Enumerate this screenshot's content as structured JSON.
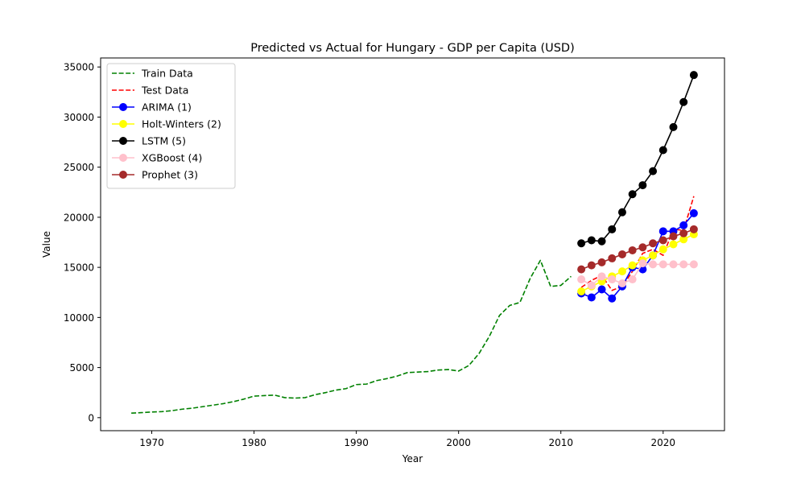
{
  "chart_data": {
    "type": "line",
    "title": "Predicted vs Actual for Hungary - GDP per Capita (USD)",
    "xlabel": "Year",
    "ylabel": "Value",
    "xlim": [
      1965,
      2026
    ],
    "ylim": [
      -1300,
      35900
    ],
    "xticks": [
      1970,
      1980,
      1990,
      2000,
      2010,
      2020
    ],
    "yticks": [
      0,
      5000,
      10000,
      15000,
      20000,
      25000,
      30000,
      35000
    ],
    "grid": false,
    "legend_position": "upper-left",
    "series": [
      {
        "name": "Train Data",
        "color": "#008000",
        "style": "dashed",
        "marker": false,
        "x": [
          1968,
          1969,
          1970,
          1971,
          1972,
          1973,
          1974,
          1975,
          1976,
          1977,
          1978,
          1979,
          1980,
          1981,
          1982,
          1983,
          1984,
          1985,
          1986,
          1987,
          1988,
          1989,
          1990,
          1991,
          1992,
          1993,
          1994,
          1995,
          1996,
          1997,
          1998,
          1999,
          2000,
          2001,
          2002,
          2003,
          2004,
          2005,
          2006,
          2007,
          2008,
          2009,
          2010,
          2011
        ],
        "y": [
          450,
          500,
          560,
          600,
          700,
          850,
          950,
          1100,
          1250,
          1400,
          1600,
          1850,
          2150,
          2200,
          2250,
          2000,
          1950,
          2000,
          2300,
          2500,
          2750,
          2900,
          3300,
          3350,
          3700,
          3900,
          4150,
          4500,
          4550,
          4600,
          4750,
          4800,
          4650,
          5200,
          6400,
          8100,
          10200,
          11200,
          11500,
          13900,
          15700,
          13100,
          13200,
          14100
        ]
      },
      {
        "name": "Test Data",
        "color": "#ff0000",
        "style": "dashed",
        "marker": false,
        "x": [
          2012,
          2013,
          2014,
          2015,
          2016,
          2017,
          2018,
          2019,
          2020,
          2021,
          2022,
          2023
        ],
        "y": [
          13000,
          13700,
          14200,
          12700,
          13100,
          14600,
          16400,
          16800,
          16200,
          18800,
          18700,
          22100
        ]
      },
      {
        "name": "ARIMA (1)",
        "color": "#0000ff",
        "style": "solid",
        "marker": true,
        "x": [
          2012,
          2013,
          2014,
          2015,
          2016,
          2017,
          2018,
          2019,
          2020,
          2021,
          2022,
          2023
        ],
        "y": [
          12400,
          12000,
          12800,
          11900,
          13100,
          15000,
          14800,
          16200,
          18600,
          18600,
          19200,
          20400
        ]
      },
      {
        "name": "Holt-Winters (2)",
        "color": "#ffff00",
        "style": "solid",
        "marker": true,
        "x": [
          2012,
          2013,
          2014,
          2015,
          2016,
          2017,
          2018,
          2019,
          2020,
          2021,
          2022,
          2023
        ],
        "y": [
          12600,
          13100,
          13600,
          14100,
          14600,
          15200,
          15700,
          16200,
          16800,
          17300,
          17800,
          18300
        ]
      },
      {
        "name": "LSTM (5)",
        "color": "#000000",
        "style": "solid",
        "marker": true,
        "x": [
          2012,
          2013,
          2014,
          2015,
          2016,
          2017,
          2018,
          2019,
          2020,
          2021,
          2022,
          2023
        ],
        "y": [
          17400,
          17700,
          17600,
          18800,
          20500,
          22300,
          23200,
          24600,
          26700,
          29000,
          31500,
          34200
        ]
      },
      {
        "name": "XGBoost (4)",
        "color": "#ffc0cb",
        "style": "solid",
        "marker": true,
        "x": [
          2012,
          2013,
          2014,
          2015,
          2016,
          2017,
          2018,
          2019,
          2020,
          2021,
          2022,
          2023
        ],
        "y": [
          13800,
          13200,
          14100,
          13800,
          13400,
          13800,
          15400,
          15300,
          15300,
          15300,
          15300,
          15300
        ]
      },
      {
        "name": "Prophet (3)",
        "color": "#a52a2a",
        "style": "solid",
        "marker": true,
        "x": [
          2012,
          2013,
          2014,
          2015,
          2016,
          2017,
          2018,
          2019,
          2020,
          2021,
          2022,
          2023
        ],
        "y": [
          14800,
          15200,
          15500,
          15900,
          16300,
          16700,
          17000,
          17400,
          17700,
          18100,
          18400,
          18800
        ]
      }
    ]
  }
}
